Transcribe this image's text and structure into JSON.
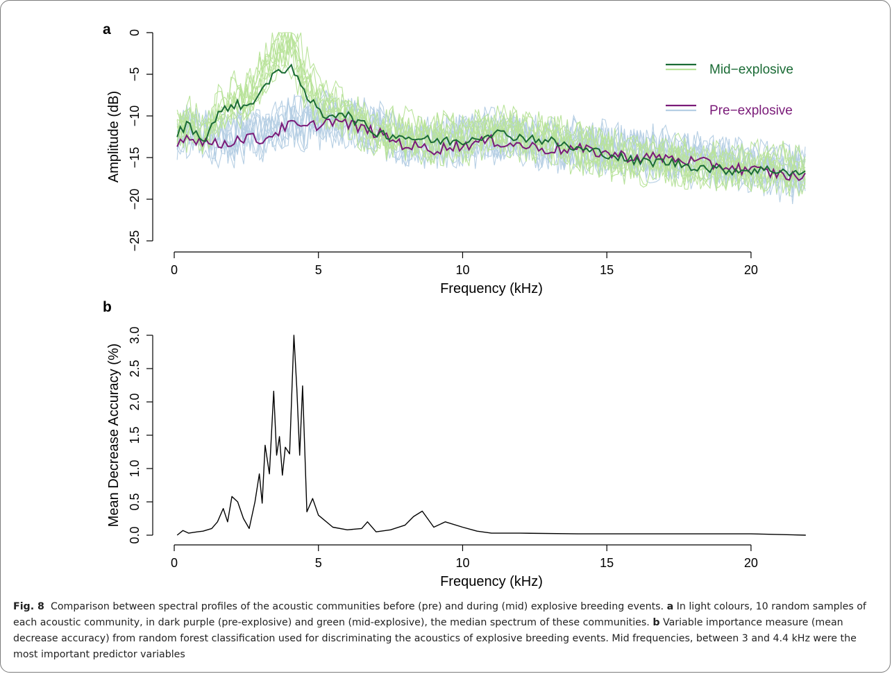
{
  "panel_a_label": "a",
  "panel_b_label": "b",
  "legend": [
    {
      "label": "Mid−explosive",
      "dark_color": "#1a6b35",
      "light_color": "#b9e39a"
    },
    {
      "label": "Pre−explosive",
      "dark_color": "#7a1a78",
      "light_color": "#b6cfe4"
    }
  ],
  "caption": {
    "fig_label": "Fig. 8",
    "intro": "Comparison between spectral profiles of the acoustic communities before (pre) and during (mid) explosive breeding events.",
    "a_label": "a",
    "a_text": "In light colours, 10 random samples of each acoustic community, in dark purple (pre-explosive) and green (mid-explosive), the median spectrum of these communities.",
    "b_label": "b",
    "b_text": "Variable importance measure (mean decrease accuracy) from random forest classification used for discriminating the acoustics of explosive breeding events. Mid frequencies, between 3 and 4.4 kHz were the most important predictor variables"
  },
  "chart_data": [
    {
      "type": "line",
      "panel": "a",
      "xlabel": "Frequency (kHz)",
      "ylabel": "Amplitude (dB)",
      "xlim": [
        0,
        22
      ],
      "ylim": [
        -25,
        0
      ],
      "xticks": [
        0,
        5,
        10,
        15,
        20
      ],
      "yticks": [
        0,
        -5,
        -10,
        -15,
        -20,
        -25
      ],
      "grid": false,
      "legend_position": "top-right",
      "sample_count_per_group": 10,
      "series": [
        {
          "name": "Mid−explosive",
          "role": "median",
          "color": "#1a6b35",
          "x": [
            0.1,
            0.5,
            1.0,
            1.5,
            2.0,
            2.5,
            3.0,
            3.3,
            3.6,
            3.9,
            4.1,
            4.4,
            4.8,
            5.2,
            5.8,
            6.5,
            7.0,
            8.0,
            9.0,
            10.0,
            11.0,
            12.0,
            13.0,
            14.0,
            15.0,
            16.0,
            17.0,
            18.0,
            19.0,
            20.0,
            21.0,
            21.9
          ],
          "y": [
            -12,
            -11,
            -13,
            -10,
            -8.5,
            -9,
            -7,
            -6,
            -4.5,
            -4.3,
            -3.8,
            -7,
            -8.5,
            -10,
            -9.5,
            -11,
            -12,
            -12.5,
            -13,
            -13,
            -12,
            -12.5,
            -13,
            -14,
            -14.5,
            -15.5,
            -15.5,
            -16,
            -16.5,
            -16.5,
            -16.5,
            -17
          ]
        },
        {
          "name": "Pre−explosive",
          "role": "median",
          "color": "#7a1a78",
          "x": [
            0.1,
            0.5,
            1.0,
            1.5,
            2.0,
            2.5,
            3.0,
            3.5,
            4.0,
            4.5,
            5.0,
            5.5,
            6.0,
            6.5,
            7.0,
            8.0,
            9.0,
            10.0,
            11.0,
            12.0,
            13.0,
            14.0,
            15.0,
            16.0,
            17.0,
            18.0,
            19.0,
            20.0,
            21.0,
            21.9
          ],
          "y": [
            -13,
            -12.5,
            -13,
            -13.5,
            -13,
            -12.5,
            -13,
            -12,
            -11,
            -11.5,
            -11,
            -10.5,
            -11,
            -11.5,
            -12,
            -13.5,
            -14,
            -13.5,
            -13,
            -13.5,
            -14,
            -14,
            -14.5,
            -15,
            -15,
            -15.5,
            -16,
            -16.5,
            -17,
            -17.5
          ]
        }
      ]
    },
    {
      "type": "line",
      "panel": "b",
      "xlabel": "Frequency (kHz)",
      "ylabel": "Mean Decrease Accuracy (%)",
      "xlim": [
        0,
        22
      ],
      "ylim": [
        0,
        3.0
      ],
      "xticks": [
        0,
        5,
        10,
        15,
        20
      ],
      "yticks": [
        0.0,
        0.5,
        1.0,
        1.5,
        2.0,
        2.5,
        3.0
      ],
      "ytick_labels": [
        "0.0",
        "0.5",
        "1.0",
        "1.5",
        "2.0",
        "2.5",
        "3.0"
      ],
      "grid": false,
      "series": [
        {
          "color": "#000000",
          "x": [
            0.1,
            0.3,
            0.5,
            0.8,
            1.0,
            1.3,
            1.5,
            1.7,
            1.85,
            2.0,
            2.2,
            2.4,
            2.6,
            2.8,
            2.95,
            3.05,
            3.15,
            3.3,
            3.45,
            3.55,
            3.65,
            3.75,
            3.85,
            4.0,
            4.15,
            4.25,
            4.35,
            4.45,
            4.6,
            4.8,
            5.0,
            5.5,
            6.0,
            6.5,
            6.7,
            7.0,
            7.5,
            8.0,
            8.3,
            8.6,
            9.0,
            9.4,
            10.0,
            10.5,
            11.0,
            12.0,
            14.0,
            16.0,
            18.0,
            20.0,
            21.9
          ],
          "y": [
            0.0,
            0.07,
            0.03,
            0.05,
            0.06,
            0.1,
            0.2,
            0.4,
            0.2,
            0.58,
            0.5,
            0.25,
            0.1,
            0.5,
            0.92,
            0.48,
            1.35,
            0.92,
            2.16,
            1.2,
            1.48,
            0.9,
            1.32,
            1.22,
            3.0,
            2.2,
            1.2,
            2.24,
            0.35,
            0.55,
            0.3,
            0.12,
            0.08,
            0.1,
            0.2,
            0.05,
            0.08,
            0.15,
            0.28,
            0.36,
            0.12,
            0.2,
            0.12,
            0.06,
            0.03,
            0.03,
            0.02,
            0.02,
            0.02,
            0.02,
            0.0
          ]
        }
      ]
    }
  ]
}
